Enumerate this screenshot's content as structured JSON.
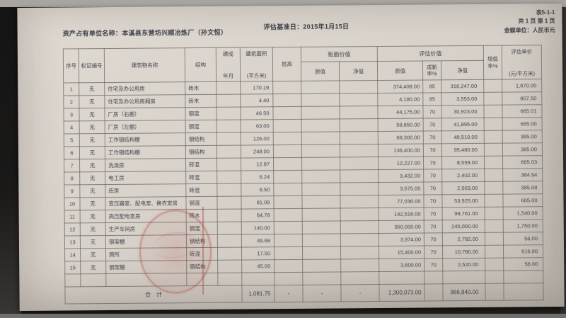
{
  "meta": {
    "form_no": "表5-1-1",
    "page_info": "共 1 页 第 1 页",
    "currency_unit": "金额单位：人民币元",
    "owner_label": "资产占有单位名称：本溪县东营坊兴顺冶炼厂（孙文恒）",
    "base_date_label": "评估基准日：2015年1月15日"
  },
  "colors": {
    "paper": "#d6d0c8",
    "stamp_red": "#b8524a",
    "ink": "#41444c"
  },
  "table": {
    "headers": {
      "index": "序号",
      "cert": "权证编号",
      "name": "建筑物名称",
      "structure": "结构",
      "built_top": "建成",
      "built_bottom": "年月",
      "area_top": "建筑面积",
      "area_bottom": "(平方米)",
      "height": "层高",
      "book_group": "账面价值",
      "book_orig": "原值",
      "book_net": "净值",
      "eval_group": "评估价值",
      "eval_orig": "原值",
      "newness": "成新\n率%",
      "eval_net": "净值",
      "increment": "增值\n率%",
      "unit_top": "评估单价",
      "unit_bottom": "(元/平方米)"
    },
    "rows": [
      [
        "1",
        "无",
        "住宅及办公用房",
        "砖木",
        "",
        "170.19",
        "",
        "",
        "",
        "374,408.00",
        "85",
        "318,247.00",
        "",
        "1,870.00"
      ],
      [
        "2",
        "无",
        "住宅及办公用房厢房",
        "砖木",
        "",
        "4.40",
        "",
        "",
        "",
        "4,180.00",
        "85",
        "3,553.00",
        "",
        "807.50"
      ],
      [
        "3",
        "无",
        "厂房（右棚）",
        "钢混",
        "",
        "46.50",
        "",
        "",
        "",
        "44,175.00",
        "70",
        "30,923.00",
        "",
        "665.01"
      ],
      [
        "4",
        "无",
        "厂房（左棚）",
        "钢混",
        "",
        "63.00",
        "",
        "",
        "",
        "59,850.00",
        "70",
        "41,895.00",
        "",
        "665.00"
      ],
      [
        "5",
        "无",
        "工作钢结构棚",
        "钢结构",
        "",
        "126.00",
        "",
        "",
        "",
        "69,300.00",
        "70",
        "48,510.00",
        "",
        "385.00"
      ],
      [
        "6",
        "无",
        "工作钢结构棚",
        "钢结构",
        "",
        "248.00",
        "",
        "",
        "",
        "136,400.00",
        "70",
        "95,480.00",
        "",
        "385.00"
      ],
      [
        "7",
        "无",
        "洗澡房",
        "砖混",
        "",
        "12.87",
        "",
        "",
        "",
        "12,227.00",
        "70",
        "8,559.00",
        "",
        "665.03"
      ],
      [
        "8",
        "无",
        "电工房",
        "砖混",
        "",
        "6.24",
        "",
        "",
        "",
        "3,432.00",
        "70",
        "2,402.00",
        "",
        "384.94"
      ],
      [
        "9",
        "无",
        "库房",
        "砖混",
        "",
        "6.50",
        "",
        "",
        "",
        "3,575.00",
        "70",
        "2,503.00",
        "",
        "385.08"
      ],
      [
        "10",
        "无",
        "变压器室、配电室、换衣室房",
        "钢混",
        "",
        "81.09",
        "",
        "",
        "",
        "77,036.00",
        "70",
        "53,925.00",
        "",
        "665.00"
      ],
      [
        "11",
        "无",
        "高压配电室房",
        "砖木",
        "",
        "64.78",
        "",
        "",
        "",
        "142,516.00",
        "70",
        "99,761.00",
        "",
        "1,540.00"
      ],
      [
        "12",
        "无",
        "生产车间房",
        "钢混",
        "",
        "140.00",
        "",
        "",
        "",
        "350,000.00",
        "70",
        "245,000.00",
        "",
        "1,750.00"
      ],
      [
        "13",
        "无",
        "钢架棚",
        "钢结构",
        "",
        "49.68",
        "",
        "",
        "",
        "3,974.00",
        "70",
        "2,782.00",
        "",
        "56.00"
      ],
      [
        "14",
        "无",
        "厕所",
        "砖混",
        "",
        "17.50",
        "",
        "",
        "",
        "15,400.00",
        "70",
        "10,780.00",
        "",
        "616.00"
      ],
      [
        "15",
        "无",
        "钢架棚",
        "钢结构",
        "",
        "45.00",
        "",
        "",
        "",
        "3,600.00",
        "70",
        "2,520.00",
        "",
        "56.00"
      ],
      [
        "",
        "",
        "",
        "",
        "",
        "",
        "",
        "",
        "",
        "",
        "",
        "",
        "",
        ""
      ]
    ],
    "total": {
      "label": "合　计",
      "area": "1,081.75",
      "height_dash": "-",
      "book_orig_dash": "-",
      "book_net_dash": "-",
      "eval_orig": "1,300,073.00",
      "eval_net": "966,840.00"
    }
  }
}
